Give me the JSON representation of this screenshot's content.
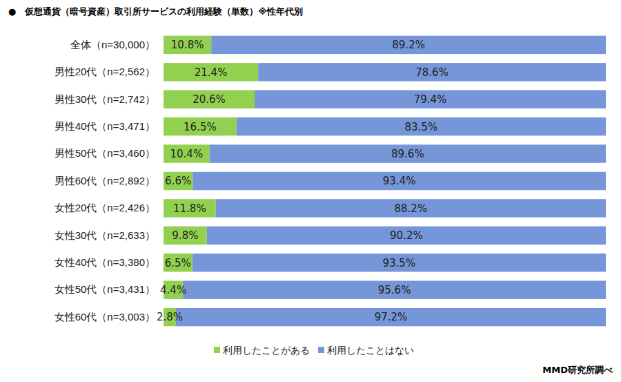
{
  "chart_data": {
    "type": "bar",
    "orientation": "horizontal",
    "stacked": true,
    "data_labels": true,
    "tick_labels": false,
    "grid": false,
    "legend": "bottom",
    "title": "●　仮想通貨（暗号資産）取引所サービスの利用経験（単数）※性年代別",
    "source": "MMD研究所調べ",
    "categories": [
      "全体（n=30,000）",
      "男性20代（n=2,562）",
      "男性30代（n=2,742）",
      "男性40代（n=3,471）",
      "男性50代（n=3,460）",
      "男性60代（n=2,892）",
      "女性20代（n=2,426）",
      "女性30代（n=2,633）",
      "女性40代（n=3,380）",
      "女性50代（n=3,431）",
      "女性60代（n=3,003）"
    ],
    "xlim": [
      0,
      100
    ],
    "series": [
      {
        "name": "利用したことがある",
        "color": "#92d050",
        "values": [
          10.8,
          21.4,
          20.6,
          16.5,
          10.4,
          6.6,
          11.8,
          9.8,
          6.5,
          4.4,
          2.8
        ],
        "value_labels": [
          "10.8%",
          "21.4%",
          "20.6%",
          "16.5%",
          "10.4%",
          "6.6%",
          "11.8%",
          "9.8%",
          "6.5%",
          "4.4%",
          "2.8%"
        ]
      },
      {
        "name": "利用したことはない",
        "color": "#7596d8",
        "values": [
          89.2,
          78.6,
          79.4,
          83.5,
          89.6,
          93.4,
          88.2,
          90.2,
          93.5,
          95.6,
          97.2
        ],
        "value_labels": [
          "89.2%",
          "78.6%",
          "79.4%",
          "83.5%",
          "89.6%",
          "93.4%",
          "88.2%",
          "90.2%",
          "93.5%",
          "95.6%",
          "97.2%"
        ]
      }
    ]
  }
}
